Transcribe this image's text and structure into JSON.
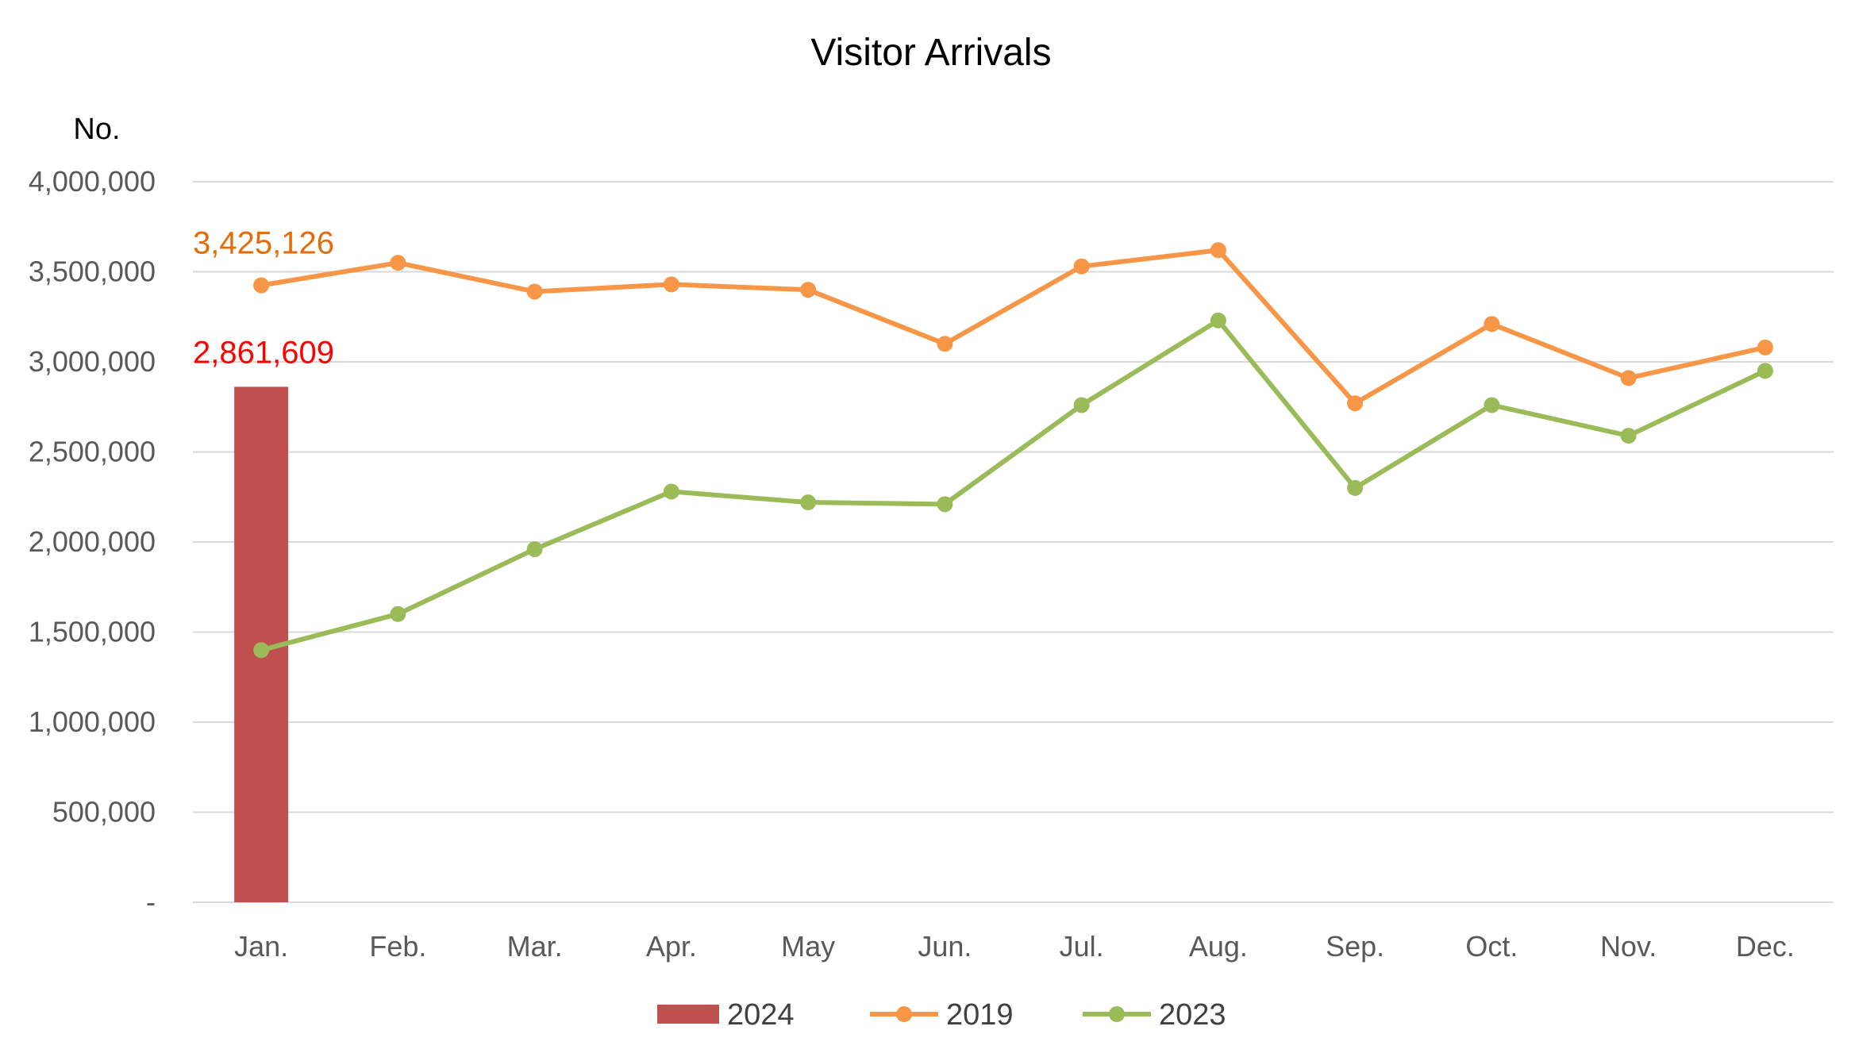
{
  "chart_data": {
    "type": "bar",
    "title": "Visitor Arrivals",
    "ylabel": "No.",
    "xlabel": "",
    "categories": [
      "Jan.",
      "Feb.",
      "Mar.",
      "Apr.",
      "May",
      "Jun.",
      "Jul.",
      "Aug.",
      "Sep.",
      "Oct.",
      "Nov.",
      "Dec."
    ],
    "ylim": [
      0,
      4000000
    ],
    "yticks": [
      0,
      500000,
      1000000,
      1500000,
      2000000,
      2500000,
      3000000,
      3500000,
      4000000
    ],
    "ytick_labels": [
      "-",
      "500,000",
      "1,000,000",
      "1,500,000",
      "2,000,000",
      "2,500,000",
      "3,000,000",
      "3,500,000",
      "4,000,000"
    ],
    "grid": true,
    "legend_position": "bottom",
    "series": [
      {
        "name": "2024",
        "kind": "bar",
        "color": "#C0504D",
        "values": [
          2861609,
          null,
          null,
          null,
          null,
          null,
          null,
          null,
          null,
          null,
          null,
          null
        ],
        "data_label": "2,861,609",
        "data_label_color": "#FF0000"
      },
      {
        "name": "2019",
        "kind": "line",
        "color": "#F79646",
        "values": [
          3425126,
          3550000,
          3390000,
          3430000,
          3400000,
          3100000,
          3530000,
          3620000,
          2770000,
          3210000,
          2910000,
          3080000
        ],
        "data_label": "3,425,126",
        "data_label_color": "#E46C0A"
      },
      {
        "name": "2023",
        "kind": "line",
        "color": "#9BBB59",
        "values": [
          1400000,
          1600000,
          1960000,
          2280000,
          2220000,
          2210000,
          2760000,
          3230000,
          2300000,
          2760000,
          2590000,
          2950000
        ]
      }
    ]
  }
}
